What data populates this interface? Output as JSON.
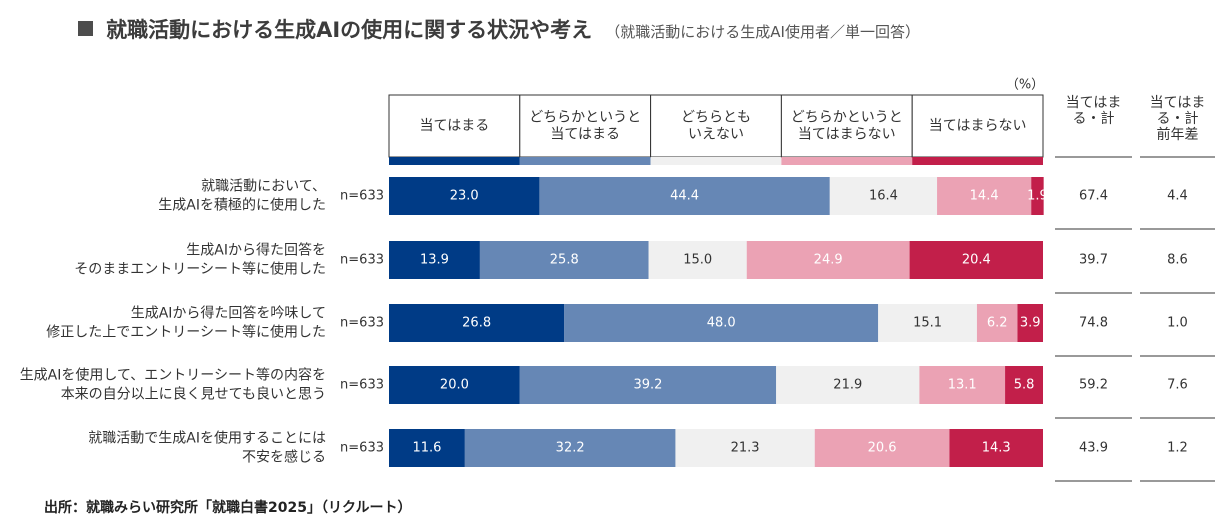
{
  "title": {
    "main": "就職活動における生成AIの使用に関する状況や考え",
    "sub": "（就職活動における生成AI使用者／単一回答）"
  },
  "source": "出所：就職みらい研究所「就職白書2025」（リクルート）",
  "chart_data": {
    "type": "bar",
    "orientation": "horizontal",
    "stacked": true,
    "unit_label": "（%）",
    "xlim": [
      0,
      100
    ],
    "categories": [
      [
        "就職活動において、",
        "生成AIを積極的に使用した"
      ],
      [
        "生成AIから得た回答を",
        "そのままエントリーシート等に使用した"
      ],
      [
        "生成AIから得た回答を吟味して",
        "修正した上でエントリーシート等に使用した"
      ],
      [
        "生成AIを使用して、エントリーシート等の内容を",
        "本来の自分以上に良く見せても良いと思う"
      ],
      [
        "就職活動で生成AIを使用することには",
        "不安を感じる"
      ]
    ],
    "n_labels": [
      "n=633",
      "n=633",
      "n=633",
      "n=633",
      "n=633"
    ],
    "series": [
      {
        "name": [
          "当てはまる"
        ],
        "color": "#003b86",
        "text_color": "#ffffff",
        "values": [
          23.0,
          13.9,
          26.8,
          20.0,
          11.6
        ],
        "labels": [
          "23.0",
          "13.9",
          "26.8",
          "20.0",
          "11.6"
        ]
      },
      {
        "name": [
          "どちらかというと",
          "当てはまる"
        ],
        "color": "#6687b5",
        "text_color": "#ffffff",
        "values": [
          44.4,
          25.8,
          48.0,
          39.2,
          32.2
        ],
        "labels": [
          "44.4",
          "25.8",
          "48.0",
          "39.2",
          "32.2"
        ]
      },
      {
        "name": [
          "どちらとも",
          "いえない"
        ],
        "color": "#f0f0f0",
        "text_color": "#333333",
        "values": [
          16.4,
          15.0,
          15.1,
          21.9,
          21.3
        ],
        "labels": [
          "16.4",
          "15.0",
          "15.1",
          "21.9",
          "21.3"
        ]
      },
      {
        "name": [
          "どちらかというと",
          "当てはまらない"
        ],
        "color": "#eba2b4",
        "text_color": "#ffffff",
        "values": [
          14.4,
          24.9,
          6.2,
          13.1,
          20.6
        ],
        "labels": [
          "14.4",
          "24.9",
          "6.2",
          "13.1",
          "20.6"
        ]
      },
      {
        "name": [
          "当てはまらない"
        ],
        "color": "#c21f4a",
        "text_color": "#ffffff",
        "values": [
          1.9,
          20.4,
          3.9,
          5.8,
          14.3
        ],
        "labels": [
          "1.9",
          "20.4",
          "3.9",
          "5.8",
          "14.3"
        ]
      }
    ],
    "extra_columns": [
      {
        "header": [
          "当てはま",
          "る・計"
        ],
        "values": [
          "67.4",
          "39.7",
          "74.8",
          "59.2",
          "43.9"
        ]
      },
      {
        "header": [
          "当てはま",
          "る・計",
          "前年差"
        ],
        "values": [
          "4.4",
          "8.6",
          "1.0",
          "7.6",
          "1.2"
        ]
      }
    ]
  }
}
